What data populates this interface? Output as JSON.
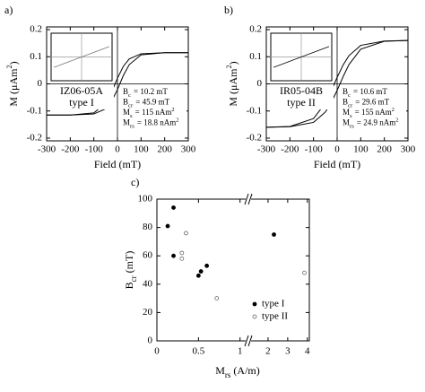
{
  "chart_data": [
    {
      "type": "line",
      "panel_label": "a)",
      "x_label": "Field (mT)",
      "y_label": {
        "main": "M (μAm",
        "sup": "2",
        "end": ")"
      },
      "x": [
        -300,
        -200,
        -100,
        -50,
        -25,
        0,
        25,
        50,
        100,
        200,
        300
      ],
      "series": [
        {
          "color": "#000000",
          "values": [
            -0.115,
            -0.115,
            -0.107,
            -0.071,
            -0.031,
            0.021,
            0.065,
            0.092,
            0.111,
            0.115,
            0.115
          ]
        },
        {
          "color": "#000000",
          "values": [
            -0.115,
            -0.115,
            -0.111,
            -0.092,
            -0.065,
            -0.021,
            0.031,
            0.071,
            0.107,
            0.115,
            0.115
          ]
        }
      ],
      "xlim": [
        -300,
        300
      ],
      "xticks": [
        -300,
        -200,
        -100,
        0,
        100,
        200,
        300
      ],
      "ylim": [
        -0.21,
        0.21
      ],
      "yticks": [
        -0.2,
        -0.1,
        0,
        0.1,
        0.2
      ],
      "sample": "IZ06-05A",
      "sample_type": "type I",
      "parameters": [
        {
          "main": "B",
          "sub": "c",
          "rest": "= 10.2 mT"
        },
        {
          "main": "B",
          "sub": "cr",
          "rest": "= 45.9 mT"
        },
        {
          "main": "M",
          "sub": "s",
          "rest": "= 115 nAm",
          "sup": "2"
        },
        {
          "main": "M",
          "sub": "rs",
          "rest": "= 18.8 nAm",
          "sup": "2"
        }
      ]
    },
    {
      "type": "line",
      "panel_label": "b)",
      "x_label": "Field (mT)",
      "y_label": {
        "main": "M (μAm",
        "sup": "2",
        "end": ")"
      },
      "x": [
        -300,
        -200,
        -100,
        -50,
        -25,
        0,
        25,
        50,
        100,
        200,
        300
      ],
      "series": [
        {
          "color": "#000000",
          "values": [
            -0.16,
            -0.157,
            -0.128,
            -0.071,
            -0.026,
            0.024,
            0.069,
            0.104,
            0.142,
            0.158,
            0.16
          ]
        },
        {
          "color": "#000000",
          "values": [
            -0.16,
            -0.158,
            -0.142,
            -0.104,
            -0.069,
            -0.024,
            0.026,
            0.071,
            0.128,
            0.157,
            0.16
          ]
        }
      ],
      "xlim": [
        -300,
        300
      ],
      "xticks": [
        -300,
        -200,
        -100,
        0,
        100,
        200,
        300
      ],
      "ylim": [
        -0.21,
        0.21
      ],
      "yticks": [
        -0.2,
        -0.1,
        0,
        0.1,
        0.2
      ],
      "sample": "IR05-04B",
      "sample_type": "type II",
      "parameters": [
        {
          "main": "B",
          "sub": "c",
          "rest": "= 10.6 mT"
        },
        {
          "main": "B",
          "sub": "cr",
          "rest": "= 29.6 mT"
        },
        {
          "main": "M",
          "sub": "s",
          "rest": "= 155 nAm",
          "sup": "2"
        },
        {
          "main": "M",
          "sub": "rs",
          "rest": "= 24.9 nAm",
          "sup": "2"
        }
      ]
    },
    {
      "type": "scatter",
      "panel_label": "c)",
      "x_label": {
        "main": "M",
        "sub": "rs",
        "rest": "(A/m)"
      },
      "y_label": {
        "main": "B",
        "sub": "cr",
        "rest": "(mT)"
      },
      "x_segments": [
        {
          "xlim": [
            0,
            1.1
          ],
          "xticks": [
            0,
            0.5,
            1
          ]
        },
        {
          "xlim": [
            1,
            4.1
          ],
          "xticks": [
            2,
            3,
            4
          ]
        }
      ],
      "ylim": [
        0,
        100
      ],
      "yticks": [
        0,
        20,
        40,
        60,
        80,
        100
      ],
      "series": [
        {
          "name": "type I",
          "color": "#000000",
          "filled": true,
          "x": [
            0.13,
            0.2,
            0.2,
            0.5,
            0.53,
            0.6,
            2.3
          ],
          "values": [
            81,
            94,
            60,
            46,
            49,
            53,
            75
          ]
        },
        {
          "name": "type II",
          "color": "#666666",
          "filled": false,
          "x": [
            0.3,
            0.3,
            0.35,
            0.72,
            3.85
          ],
          "values": [
            62,
            58,
            76,
            30,
            48
          ]
        }
      ]
    }
  ]
}
